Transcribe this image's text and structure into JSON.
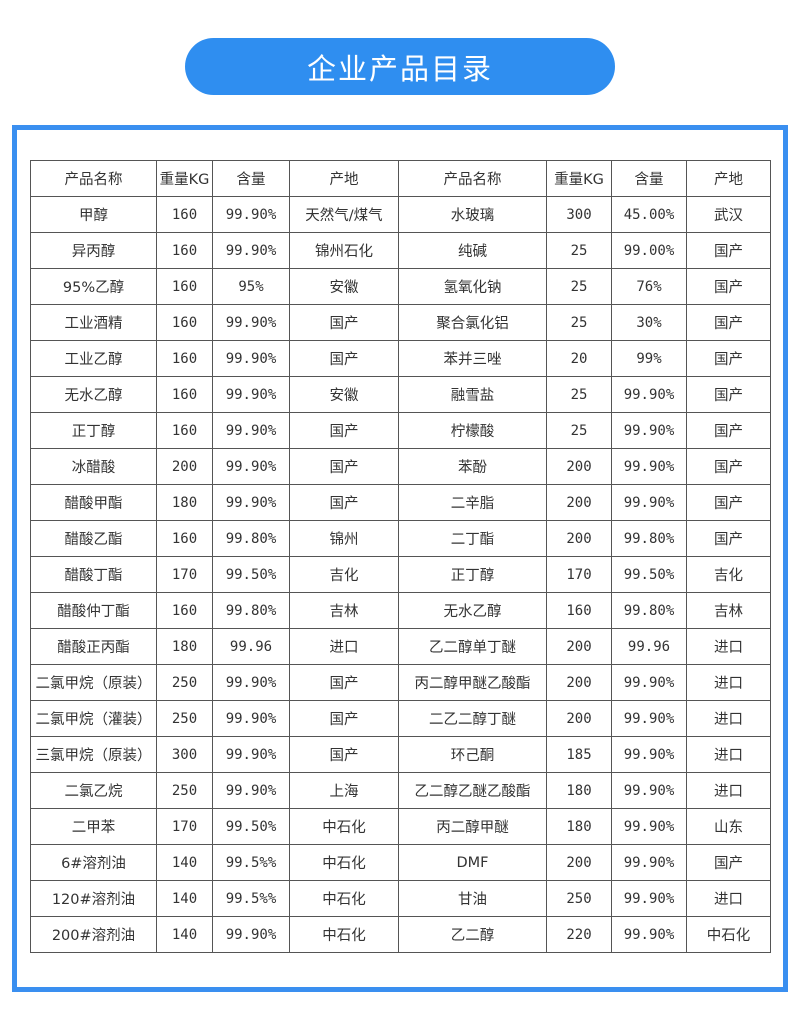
{
  "title": "企业产品目录",
  "headers": [
    "产品名称",
    "重量KG",
    "含量",
    "产地",
    "产品名称",
    "重量KG",
    "含量",
    "产地"
  ],
  "rows": [
    [
      "甲醇",
      "160",
      "99.90%",
      "天然气/煤气",
      "水玻璃",
      "300",
      "45.00%",
      "武汉"
    ],
    [
      "异丙醇",
      "160",
      "99.90%",
      "锦州石化",
      "纯碱",
      "25",
      "99.00%",
      "国产"
    ],
    [
      "95%乙醇",
      "160",
      "95%",
      "安徽",
      "氢氧化钠",
      "25",
      "76%",
      "国产"
    ],
    [
      "工业酒精",
      "160",
      "99.90%",
      "国产",
      "聚合氯化铝",
      "25",
      "30%",
      "国产"
    ],
    [
      "工业乙醇",
      "160",
      "99.90%",
      "国产",
      "苯并三唑",
      "20",
      "99%",
      "国产"
    ],
    [
      "无水乙醇",
      "160",
      "99.90%",
      "安徽",
      "融雪盐",
      "25",
      "99.90%",
      "国产"
    ],
    [
      "正丁醇",
      "160",
      "99.90%",
      "国产",
      "柠檬酸",
      "25",
      "99.90%",
      "国产"
    ],
    [
      "冰醋酸",
      "200",
      "99.90%",
      "国产",
      "苯酚",
      "200",
      "99.90%",
      "国产"
    ],
    [
      "醋酸甲酯",
      "180",
      "99.90%",
      "国产",
      "二辛脂",
      "200",
      "99.90%",
      "国产"
    ],
    [
      "醋酸乙酯",
      "160",
      "99.80%",
      "锦州",
      "二丁酯",
      "200",
      "99.80%",
      "国产"
    ],
    [
      "醋酸丁酯",
      "170",
      "99.50%",
      "吉化",
      "正丁醇",
      "170",
      "99.50%",
      "吉化"
    ],
    [
      "醋酸仲丁酯",
      "160",
      "99.80%",
      "吉林",
      "无水乙醇",
      "160",
      "99.80%",
      "吉林"
    ],
    [
      "醋酸正丙酯",
      "180",
      "99.96",
      "进口",
      "乙二醇单丁醚",
      "200",
      "99.96",
      "进口"
    ],
    [
      "二氯甲烷（原装）",
      "250",
      "99.90%",
      "国产",
      "丙二醇甲醚乙酸酯",
      "200",
      "99.90%",
      "进口"
    ],
    [
      "二氯甲烷（灌装）",
      "250",
      "99.90%",
      "国产",
      "二乙二醇丁醚",
      "200",
      "99.90%",
      "进口"
    ],
    [
      "三氯甲烷（原装）",
      "300",
      "99.90%",
      "国产",
      "环己酮",
      "185",
      "99.90%",
      "进口"
    ],
    [
      "二氯乙烷",
      "250",
      "99.90%",
      "上海",
      "乙二醇乙醚乙酸酯",
      "180",
      "99.90%",
      "进口"
    ],
    [
      "二甲苯",
      "170",
      "99.50%",
      "中石化",
      "丙二醇甲醚",
      "180",
      "99.90%",
      "山东"
    ],
    [
      "6#溶剂油",
      "140",
      "99.5%%",
      "中石化",
      "DMF",
      "200",
      "99.90%",
      "国产"
    ],
    [
      "120#溶剂油",
      "140",
      "99.5%%",
      "中石化",
      "甘油",
      "250",
      "99.90%",
      "进口"
    ],
    [
      "200#溶剂油",
      "140",
      "99.90%",
      "中石化",
      "乙二醇",
      "220",
      "99.90%",
      "中石化"
    ]
  ],
  "colors": {
    "accent": "#2f8ef0"
  }
}
